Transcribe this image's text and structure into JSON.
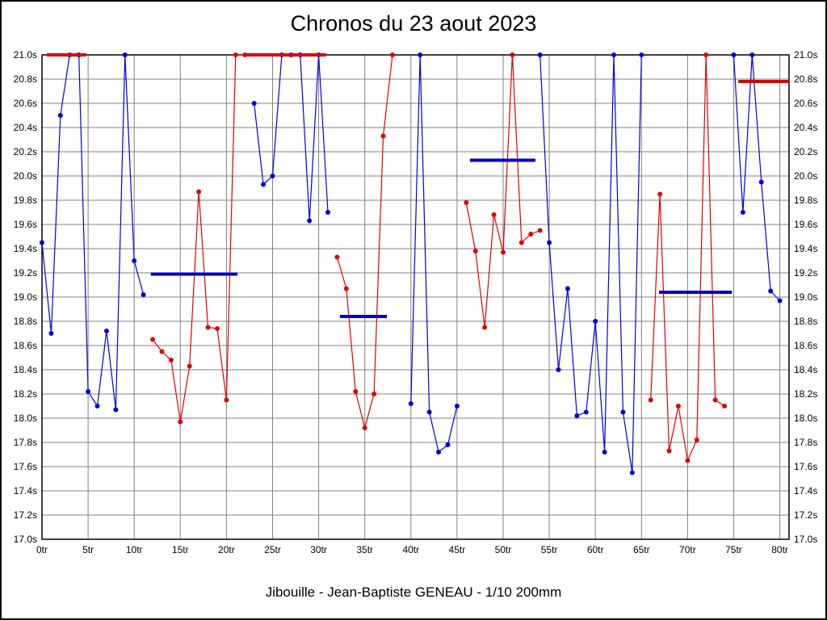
{
  "chart_data": {
    "type": "line",
    "title": "Chronos du 23 aout 2023",
    "caption": "Jibouille - Jean-Baptiste GENEAU - 1/10 200mm",
    "xlabel": "",
    "ylabel": "",
    "xlim": [
      0,
      81
    ],
    "ylim": [
      17.0,
      21.0
    ],
    "grid": true,
    "x_ticks": [
      0,
      5,
      10,
      15,
      20,
      25,
      30,
      35,
      40,
      45,
      50,
      55,
      60,
      65,
      70,
      75,
      80
    ],
    "x_tick_suffix": "tr",
    "y_ticks": [
      17.0,
      17.2,
      17.4,
      17.6,
      17.8,
      18.0,
      18.2,
      18.4,
      18.6,
      18.8,
      19.0,
      19.2,
      19.4,
      19.6,
      19.8,
      20.0,
      20.2,
      20.4,
      20.6,
      20.8,
      21.0
    ],
    "y_tick_suffix": "s",
    "colors": {
      "blue": "#0000dd",
      "red": "#e00000",
      "avg_blue": "#0000b8",
      "avg_red": "#e00000",
      "grid": "#808080",
      "frame": "#000000"
    },
    "series": [
      {
        "name": "blue",
        "color_key": "blue",
        "segments": [
          [
            [
              0,
              19.45
            ],
            [
              1,
              18.7
            ],
            [
              2,
              20.5
            ],
            [
              3,
              21.0
            ],
            [
              4,
              21.0
            ],
            [
              5,
              18.22
            ],
            [
              6,
              18.1
            ],
            [
              7,
              18.72
            ],
            [
              8,
              18.07
            ],
            [
              9,
              21.0
            ],
            [
              10,
              19.3
            ],
            [
              11,
              19.02
            ]
          ],
          [
            [
              23,
              20.6
            ],
            [
              24,
              19.93
            ],
            [
              25,
              20.0
            ],
            [
              26,
              21.0
            ],
            [
              27,
              21.0
            ],
            [
              28,
              21.0
            ],
            [
              29,
              19.63
            ],
            [
              30,
              21.0
            ],
            [
              31,
              19.7
            ]
          ],
          [
            [
              40,
              18.12
            ],
            [
              41,
              21.0
            ],
            [
              42,
              18.05
            ],
            [
              43,
              17.72
            ],
            [
              44,
              17.78
            ],
            [
              45,
              18.1
            ]
          ],
          [
            [
              54,
              21.0
            ],
            [
              55,
              19.45
            ],
            [
              56,
              18.4
            ],
            [
              57,
              19.07
            ],
            [
              58,
              18.02
            ],
            [
              59,
              18.05
            ],
            [
              60,
              18.8
            ],
            [
              61,
              17.72
            ],
            [
              62,
              21.0
            ],
            [
              63,
              18.05
            ],
            [
              64,
              17.55
            ],
            [
              65,
              21.0
            ]
          ],
          [
            [
              75,
              21.0
            ],
            [
              76,
              19.7
            ],
            [
              77,
              21.0
            ],
            [
              78,
              19.95
            ],
            [
              79,
              19.05
            ],
            [
              80,
              18.97
            ]
          ]
        ]
      },
      {
        "name": "red",
        "color_key": "red",
        "segments": [
          [
            [
              12,
              18.65
            ],
            [
              13,
              18.55
            ],
            [
              14,
              18.48
            ],
            [
              15,
              17.97
            ],
            [
              16,
              18.43
            ],
            [
              17,
              19.87
            ],
            [
              18,
              18.75
            ],
            [
              19,
              18.74
            ],
            [
              20,
              18.15
            ],
            [
              21,
              21.0
            ],
            [
              22,
              21.0
            ]
          ],
          [
            [
              32,
              19.33
            ],
            [
              33,
              19.07
            ],
            [
              34,
              18.22
            ],
            [
              35,
              17.92
            ],
            [
              36,
              18.2
            ],
            [
              37,
              20.33
            ],
            [
              38,
              21.0
            ]
          ],
          [
            [
              46,
              19.78
            ],
            [
              47,
              19.38
            ],
            [
              48,
              18.75
            ],
            [
              49,
              19.68
            ],
            [
              50,
              19.37
            ],
            [
              51,
              21.0
            ],
            [
              52,
              19.45
            ],
            [
              53,
              19.52
            ],
            [
              54,
              19.55
            ]
          ],
          [
            [
              66,
              18.15
            ],
            [
              67,
              19.85
            ],
            [
              68,
              17.73
            ],
            [
              69,
              18.1
            ],
            [
              70,
              17.65
            ],
            [
              71,
              17.82
            ],
            [
              72,
              21.0
            ],
            [
              73,
              18.15
            ],
            [
              74,
              18.1
            ]
          ]
        ]
      }
    ],
    "average_bars": [
      {
        "color_key": "avg_red",
        "y": 21.0,
        "x1": 0.5,
        "x2": 4.8
      },
      {
        "color_key": "avg_blue",
        "y": 19.19,
        "x1": 11.8,
        "x2": 21.2
      },
      {
        "color_key": "avg_red",
        "y": 21.0,
        "x1": 22.0,
        "x2": 30.8
      },
      {
        "color_key": "avg_blue",
        "y": 18.84,
        "x1": 32.3,
        "x2": 37.4
      },
      {
        "color_key": "avg_blue",
        "y": 20.13,
        "x1": 46.4,
        "x2": 53.5
      },
      {
        "color_key": "avg_blue",
        "y": 19.04,
        "x1": 66.9,
        "x2": 74.8
      },
      {
        "color_key": "avg_red",
        "y": 20.78,
        "x1": 75.5,
        "x2": 81.0
      }
    ]
  }
}
